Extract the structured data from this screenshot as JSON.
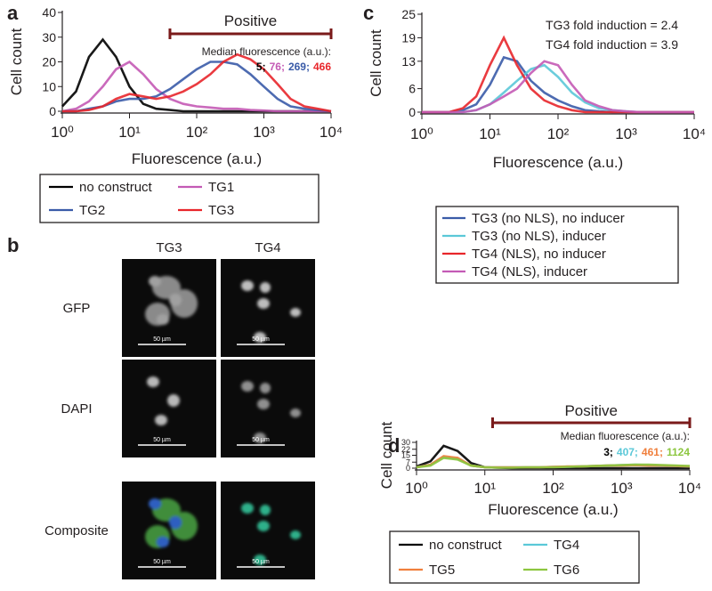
{
  "chart_data": [
    {
      "type": "line",
      "panel_label": "a",
      "xlabel": "Fluorescence (a.u.)",
      "ylabel": "Cell count",
      "log_x": true,
      "x": [
        1,
        1.6,
        2.5,
        4,
        6.3,
        10,
        16,
        25,
        40,
        63,
        100,
        160,
        250,
        400,
        630,
        1000,
        1600,
        2500,
        4000,
        6300,
        10000
      ],
      "xlim": [
        1,
        10000
      ],
      "xticks": [
        {
          "value": 1,
          "label": "10⁰"
        },
        {
          "value": 10,
          "label": "10¹"
        },
        {
          "value": 100,
          "label": "10²"
        },
        {
          "value": 1000,
          "label": "10³"
        },
        {
          "value": 10000,
          "label": "10⁴"
        }
      ],
      "ylim": [
        0,
        40
      ],
      "yticks": [
        0,
        10,
        20,
        30,
        40
      ],
      "series": [
        {
          "name": "no construct",
          "color": "#000000",
          "values": [
            2,
            8,
            22,
            29,
            22,
            10,
            3,
            1,
            0.5,
            0,
            0,
            0,
            0,
            0,
            0,
            0,
            0,
            0,
            0,
            0,
            0
          ]
        },
        {
          "name": "TG1",
          "color": "#c45ab5",
          "values": [
            0,
            1,
            4,
            10,
            17,
            20,
            15,
            9,
            5,
            3,
            2,
            1.5,
            1,
            1,
            0.5,
            0.3,
            0,
            0,
            0,
            0,
            0
          ]
        },
        {
          "name": "TG2",
          "color": "#3a5ba8",
          "values": [
            0,
            0,
            1,
            2,
            4,
            5,
            5,
            6,
            9,
            13,
            17,
            20,
            20,
            19,
            15,
            10,
            5,
            2,
            1,
            0.5,
            0
          ]
        },
        {
          "name": "TG3",
          "color": "#e8262b",
          "values": [
            0,
            0,
            0.5,
            2,
            5,
            7,
            6,
            5,
            6,
            8,
            11,
            15,
            20,
            23,
            21,
            17,
            11,
            5,
            2,
            1,
            0
          ]
        }
      ],
      "positive": {
        "label": "Positive",
        "range": [
          40,
          10000
        ],
        "color": "#7a1a1a"
      },
      "medians": {
        "title": "Median fluorescence (a.u.):",
        "values": [
          5,
          76,
          269,
          466
        ],
        "value_labels": [
          "5;",
          "76;",
          "269;",
          "466"
        ]
      },
      "legend": "below"
    },
    {
      "type": "line",
      "panel_label": "c",
      "xlabel": "Fluorescence (a.u.)",
      "ylabel": "Cell count",
      "log_x": true,
      "x": [
        1,
        1.6,
        2.5,
        4,
        6.3,
        10,
        16,
        25,
        40,
        63,
        100,
        160,
        250,
        400,
        630,
        1000,
        1600,
        2500,
        4000,
        6300,
        10000
      ],
      "xlim": [
        1,
        10000
      ],
      "xticks": [
        {
          "value": 1,
          "label": "10⁰"
        },
        {
          "value": 10,
          "label": "10¹"
        },
        {
          "value": 100,
          "label": "10²"
        },
        {
          "value": 1000,
          "label": "10³"
        },
        {
          "value": 10000,
          "label": "10⁴"
        }
      ],
      "ylim": [
        0,
        25
      ],
      "yticks": [
        0,
        6,
        13,
        19,
        25
      ],
      "series": [
        {
          "name": "TG3 (no NLS), no inducer",
          "color": "#3a5ba8",
          "values": [
            0,
            0,
            0,
            0.5,
            2,
            7,
            14,
            13,
            8,
            5,
            3,
            1.5,
            0.5,
            0.2,
            0,
            0,
            0,
            0,
            0,
            0,
            0
          ]
        },
        {
          "name": "TG3 (no NLS), inducer",
          "color": "#5bc8d8",
          "values": [
            0,
            0,
            0,
            0,
            0.5,
            2,
            5,
            8,
            11,
            12,
            9,
            5,
            2.5,
            1,
            0.5,
            0.2,
            0,
            0,
            0,
            0,
            0
          ]
        },
        {
          "name": "TG4 (NLS), no inducer",
          "color": "#e8262b",
          "values": [
            0,
            0,
            0,
            1,
            4,
            12,
            19,
            12,
            6,
            3,
            1.5,
            0.5,
            0,
            0,
            0,
            0,
            0,
            0,
            0,
            0,
            0
          ]
        },
        {
          "name": "TG4 (NLS), inducer",
          "color": "#c45ab5",
          "values": [
            0,
            0,
            0,
            0,
            0.5,
            2,
            4,
            6,
            10,
            13,
            12,
            7,
            3,
            1.5,
            0.5,
            0.2,
            0,
            0,
            0,
            0,
            0
          ]
        }
      ],
      "annotations": [
        "TG3 fold induction = 2.4",
        "TG4 fold induction = 3.9"
      ],
      "legend": "below"
    },
    {
      "type": "line",
      "panel_label": "d",
      "xlabel": "Fluorescence (a.u.)",
      "ylabel": "Cell count",
      "log_x": true,
      "x": [
        1,
        1.6,
        2.5,
        4,
        6.3,
        10,
        16,
        25,
        40,
        63,
        100,
        160,
        250,
        400,
        630,
        1000,
        1600,
        2500,
        4000,
        6300,
        10000
      ],
      "xlim": [
        1,
        10000
      ],
      "xticks": [
        {
          "value": 1,
          "label": "10⁰"
        },
        {
          "value": 10,
          "label": "10¹"
        },
        {
          "value": 100,
          "label": "10²"
        },
        {
          "value": 1000,
          "label": "10³"
        },
        {
          "value": 10000,
          "label": "10⁴"
        }
      ],
      "ylim": [
        0,
        30
      ],
      "yticks": [
        0,
        7,
        15,
        22,
        30
      ],
      "series": [
        {
          "name": "no construct",
          "color": "#000000",
          "values": [
            2,
            8,
            26,
            20,
            6,
            1,
            0.5,
            0,
            0,
            0,
            0,
            0,
            0,
            0,
            0,
            0,
            0,
            0,
            0,
            0,
            0
          ]
        },
        {
          "name": "TG4",
          "color": "#5bc8d8",
          "values": [
            1,
            4,
            13,
            11,
            3,
            1,
            1,
            1,
            1,
            1,
            1.5,
            1.5,
            2,
            2.5,
            3,
            3.5,
            4,
            3.5,
            3,
            2.5,
            2
          ]
        },
        {
          "name": "TG5",
          "color": "#f07f3c",
          "values": [
            1,
            4,
            14,
            12,
            3,
            1,
            1,
            1,
            1,
            1,
            1.5,
            2,
            2,
            2.5,
            3,
            3,
            3.5,
            3,
            3,
            2.5,
            2
          ]
        },
        {
          "name": "TG6",
          "color": "#8cc63f",
          "values": [
            1,
            3,
            12,
            10,
            3,
            1,
            0.5,
            0.5,
            1,
            1,
            1,
            1.5,
            2,
            2.5,
            3,
            3.5,
            4,
            4,
            3.5,
            3,
            2.5
          ]
        }
      ],
      "positive": {
        "label": "Positive",
        "range": [
          13,
          10000
        ],
        "color": "#7a1a1a"
      },
      "medians": {
        "title": "Median fluorescence (a.u.):",
        "values": [
          3,
          407,
          461,
          1124
        ],
        "value_labels": [
          "3;",
          "407;",
          "461;",
          "1124"
        ]
      },
      "legend": "below"
    }
  ],
  "image_panel": {
    "panel_label": "b",
    "columns": [
      "TG3",
      "TG4"
    ],
    "rows": [
      "GFP",
      "DAPI",
      "Composite"
    ],
    "scale_bar": "50 µm"
  }
}
